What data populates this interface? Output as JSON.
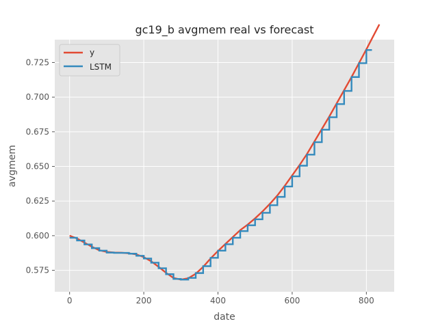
{
  "chart_data": {
    "type": "line",
    "title": "gc19_b avgmem real vs forecast",
    "xlabel": "date",
    "ylabel": "avgmem",
    "xlim": [
      -40,
      875
    ],
    "ylim": [
      0.5595,
      0.7415
    ],
    "x_ticks": [
      0,
      200,
      400,
      600,
      800
    ],
    "x_tick_labels": [
      "0",
      "200",
      "400",
      "600",
      "800"
    ],
    "y_ticks": [
      0.575,
      0.6,
      0.625,
      0.65,
      0.675,
      0.7,
      0.725
    ],
    "y_tick_labels": [
      "0.575",
      "0.600",
      "0.625",
      "0.650",
      "0.675",
      "0.700",
      "0.725"
    ],
    "grid": true,
    "legend_position": "top-left",
    "series": [
      {
        "name": "y",
        "color": "#E24A33",
        "style": "line",
        "x": [
          0,
          20,
          40,
          60,
          80,
          100,
          120,
          140,
          160,
          180,
          200,
          220,
          240,
          260,
          280,
          300,
          320,
          340,
          360,
          380,
          400,
          420,
          440,
          460,
          480,
          500,
          520,
          540,
          560,
          580,
          600,
          620,
          640,
          660,
          680,
          700,
          720,
          740,
          760,
          780,
          800,
          820,
          835
        ],
        "values": [
          0.6,
          0.598,
          0.595,
          0.592,
          0.5895,
          0.5883,
          0.5878,
          0.5877,
          0.5873,
          0.5865,
          0.5845,
          0.5815,
          0.5775,
          0.5732,
          0.5695,
          0.5683,
          0.5693,
          0.5725,
          0.5775,
          0.5835,
          0.589,
          0.594,
          0.599,
          0.604,
          0.608,
          0.6125,
          0.6175,
          0.623,
          0.629,
          0.636,
          0.6435,
          0.651,
          0.659,
          0.668,
          0.677,
          0.686,
          0.6955,
          0.705,
          0.7145,
          0.7245,
          0.7345,
          0.7448,
          0.7525
        ]
      },
      {
        "name": "LSTM",
        "color": "#348ABD",
        "style": "step",
        "x": [
          0,
          20,
          40,
          60,
          80,
          100,
          120,
          140,
          160,
          180,
          200,
          220,
          240,
          260,
          280,
          300,
          320,
          340,
          360,
          380,
          400,
          420,
          440,
          460,
          480,
          500,
          520,
          540,
          560,
          580,
          600,
          620,
          640,
          660,
          680,
          700,
          720,
          740,
          760,
          780,
          800
        ],
        "values": [
          0.5985,
          0.5965,
          0.5937,
          0.591,
          0.5892,
          0.5878,
          0.5876,
          0.5876,
          0.587,
          0.5855,
          0.5835,
          0.5805,
          0.5765,
          0.5722,
          0.5688,
          0.5683,
          0.5695,
          0.573,
          0.578,
          0.584,
          0.5892,
          0.5938,
          0.5985,
          0.6033,
          0.6075,
          0.6118,
          0.6165,
          0.622,
          0.628,
          0.6355,
          0.6428,
          0.6505,
          0.6585,
          0.6675,
          0.6765,
          0.6855,
          0.695,
          0.7045,
          0.7145,
          0.7245,
          0.734
        ],
        "step_end_x": 815
      }
    ]
  }
}
